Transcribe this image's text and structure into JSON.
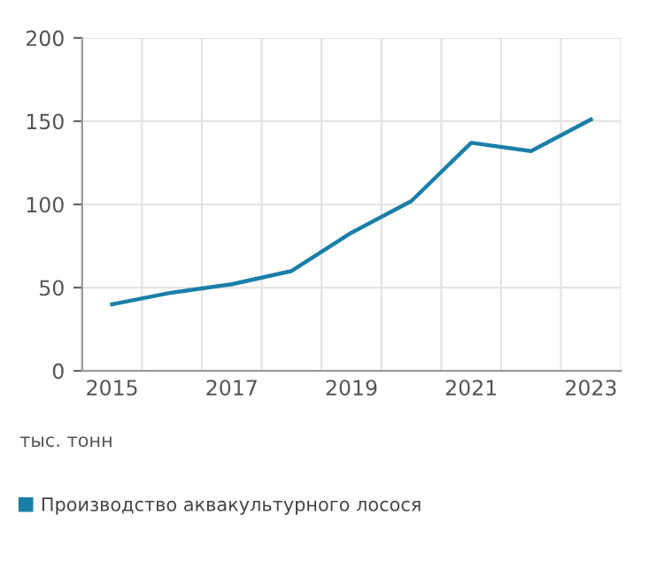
{
  "chart_data": {
    "type": "line",
    "categories": [
      "2015",
      null,
      "2017",
      null,
      "2019",
      null,
      "2021",
      null,
      "2023"
    ],
    "series": [
      {
        "name": "Производство аквакультурного лосося",
        "color": "#1a7fa8",
        "values": [
          40,
          47,
          52,
          60,
          83,
          102,
          137,
          132,
          151
        ]
      }
    ],
    "ylim": [
      0,
      200
    ],
    "yticks": [
      0,
      50,
      100,
      150,
      200
    ],
    "grid": true,
    "legend": "bottom left",
    "marker": "none",
    "line_style": "solid",
    "annotations": [
      "тыс. тонн"
    ]
  }
}
